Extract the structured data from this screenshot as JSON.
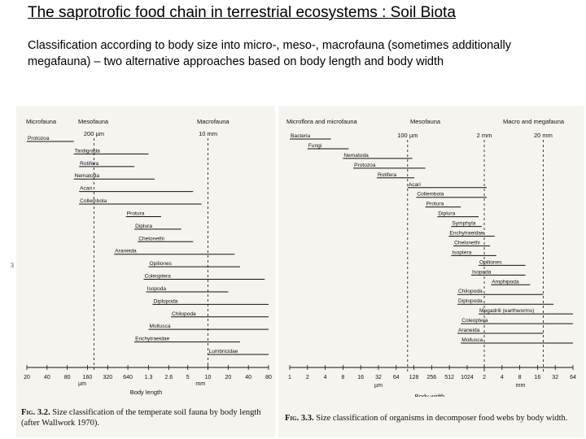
{
  "slide": {
    "title": "The saprotrofic food chain in terrestrial ecosystems : Soil Biota",
    "subtitle": "Classification according to body size into micro-, meso-, macrofauna (sometimes additionally megafauna) – two alternative approaches based on body length and body width",
    "margin_mark": "3"
  },
  "figures": [
    {
      "id": "fig-3-2",
      "type": "range-bar",
      "caption_label": "Fig. 3.2.",
      "caption_text": "Size classification of the temperate soil fauna by body length (after Wallwork 1970).",
      "zone_labels": [
        "Microfauna",
        "Mesofauna",
        "Macrofauna"
      ],
      "marker_labels": [
        "200 µm",
        "10 mm"
      ],
      "axis_ticks": [
        "20",
        "40",
        "80",
        "160",
        "320",
        "640",
        "1.3",
        "2.6",
        "5",
        "10",
        "20",
        "40",
        "80"
      ],
      "unit_left": "µm",
      "unit_right": "mm",
      "axis_label": "Body length",
      "tick_values": [
        0.02,
        0.04,
        0.08,
        0.16,
        0.32,
        0.64,
        1.3,
        2.6,
        5,
        10,
        20,
        40,
        80
      ],
      "markers": [
        0.2,
        10
      ],
      "taxa": [
        {
          "name": "Protozoa",
          "min": 0.02,
          "max": 0.1
        },
        {
          "name": "Tardigrada",
          "min": 0.1,
          "max": 1.3
        },
        {
          "name": "Rotifera",
          "min": 0.12,
          "max": 0.8
        },
        {
          "name": "Nematoda",
          "min": 0.1,
          "max": 1.6
        },
        {
          "name": "Acari",
          "min": 0.12,
          "max": 6
        },
        {
          "name": "Collembola",
          "min": 0.12,
          "max": 8
        },
        {
          "name": "Protura",
          "min": 0.6,
          "max": 2
        },
        {
          "name": "Diplura",
          "min": 0.8,
          "max": 4
        },
        {
          "name": "Chelonethi",
          "min": 0.9,
          "max": 6
        },
        {
          "name": "Araneida",
          "min": 0.4,
          "max": 25
        },
        {
          "name": "Opiliones",
          "min": 1.3,
          "max": 30
        },
        {
          "name": "Coleoptera",
          "min": 1.1,
          "max": 70
        },
        {
          "name": "Isopoda",
          "min": 1.2,
          "max": 20
        },
        {
          "name": "Diplopoda",
          "min": 1.5,
          "max": 80
        },
        {
          "name": "Chilopoda",
          "min": 2.8,
          "max": 80
        },
        {
          "name": "Mollusca",
          "min": 1.3,
          "max": 80
        },
        {
          "name": "Enchytraeidae",
          "min": 0.8,
          "max": 30
        },
        {
          "name": "Lumbricidae",
          "min": 10,
          "max": 80
        }
      ]
    },
    {
      "id": "fig-3-3",
      "type": "range-bar",
      "caption_label": "Fig. 3.3.",
      "caption_text": "Size classification of organisms in decomposer food webs by body width.",
      "zone_labels": [
        "Microflora and microfauna",
        "Mesofauna",
        "Macro and megafauna"
      ],
      "marker_labels": [
        "100 µm",
        "2 mm",
        "20 mm"
      ],
      "axis_ticks": [
        "1",
        "2",
        "4",
        "8",
        "16",
        "32",
        "64",
        "128",
        "256",
        "512",
        "1024",
        "2",
        "4",
        "8",
        "16",
        "32",
        "64"
      ],
      "unit_left": "µm",
      "unit_right": "mm",
      "axis_label": "Body width",
      "tick_values": [
        0.001,
        0.002,
        0.004,
        0.008,
        0.016,
        0.032,
        0.064,
        0.128,
        0.256,
        0.512,
        1.024,
        2,
        4,
        8,
        16,
        32,
        64
      ],
      "markers": [
        0.1,
        2,
        20
      ],
      "taxa": [
        {
          "name": "Bacteria",
          "min": 0.001,
          "max": 0.005
        },
        {
          "name": "Fungi",
          "min": 0.002,
          "max": 0.01
        },
        {
          "name": "Nematoda",
          "min": 0.008,
          "max": 0.12
        },
        {
          "name": "Protozoa",
          "min": 0.012,
          "max": 0.2
        },
        {
          "name": "Rotifera",
          "min": 0.03,
          "max": 0.13
        },
        {
          "name": "Acari",
          "min": 0.1,
          "max": 2.2
        },
        {
          "name": "Collembola",
          "min": 0.14,
          "max": 2.2
        },
        {
          "name": "Protura",
          "min": 0.2,
          "max": 0.8
        },
        {
          "name": "Diplura",
          "min": 0.32,
          "max": 1.6
        },
        {
          "name": "Symphyla",
          "min": 0.55,
          "max": 1.8
        },
        {
          "name": "Enchytraeidae",
          "min": 0.5,
          "max": 3
        },
        {
          "name": "Chelonethi",
          "min": 0.6,
          "max": 2.5
        },
        {
          "name": "Isoptera",
          "min": 0.55,
          "max": 3.2
        },
        {
          "name": "Opiliones",
          "min": 1.6,
          "max": 10
        },
        {
          "name": "Isopoda",
          "min": 1.2,
          "max": 10
        },
        {
          "name": "Amphipoda",
          "min": 2.6,
          "max": 12
        },
        {
          "name": "Chilopoda",
          "min": 0.7,
          "max": 20
        },
        {
          "name": "Diplopoda",
          "min": 0.7,
          "max": 30
        },
        {
          "name": "Megadrili (earthworms)",
          "min": 1.6,
          "max": 64
        },
        {
          "name": "Coleoptera",
          "min": 0.8,
          "max": 64
        },
        {
          "name": "Araneida",
          "min": 0.7,
          "max": 20
        },
        {
          "name": "Mollusca",
          "min": 0.8,
          "max": 64
        }
      ]
    }
  ]
}
